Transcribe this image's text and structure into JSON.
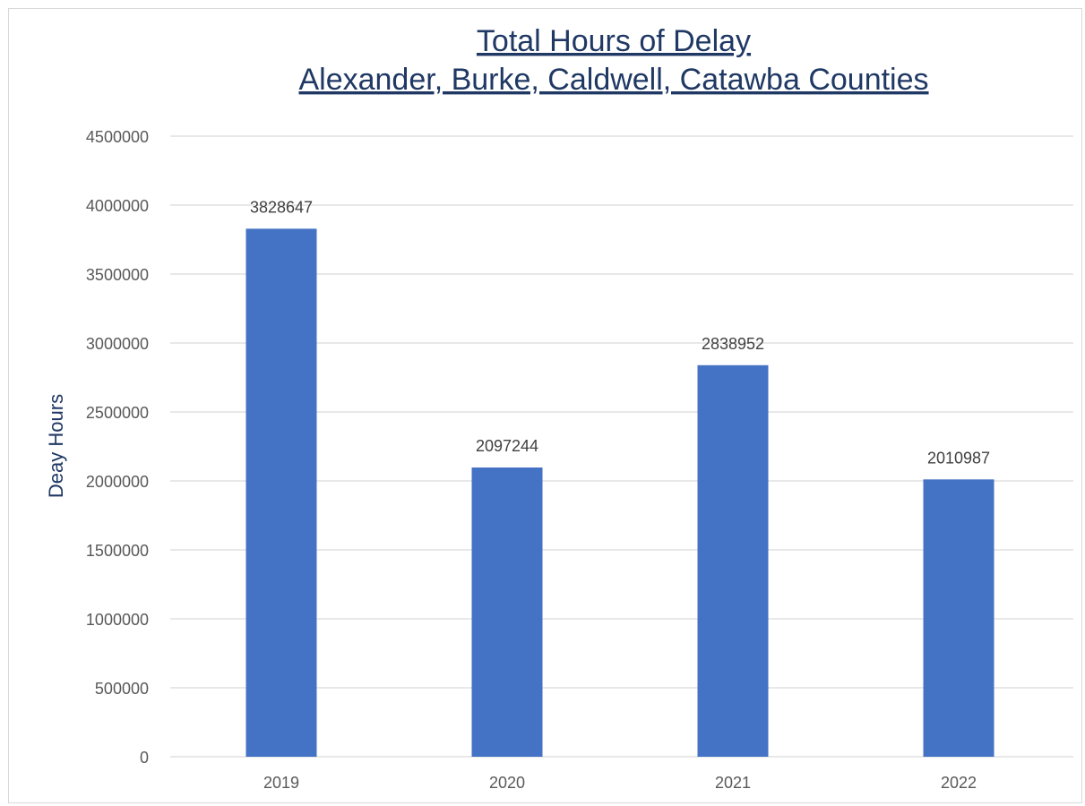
{
  "chart_data": {
    "type": "bar",
    "title": "Total Hours of Delay",
    "subtitle": "Alexander, Burke, Caldwell, Catawba Counties",
    "ylabel": "Deay Hours",
    "xlabel": "",
    "categories": [
      "2019",
      "2020",
      "2021",
      "2022"
    ],
    "values": [
      3828647,
      2097244,
      2838952,
      2010987
    ],
    "data_labels": [
      "3828647",
      "2097244",
      "2838952",
      "2010987"
    ],
    "ylim": [
      0,
      4500000
    ],
    "yticks": [
      0,
      500000,
      1000000,
      1500000,
      2000000,
      2500000,
      3000000,
      3500000,
      4000000,
      4500000
    ],
    "ytick_labels": [
      "0",
      "500000",
      "1000000",
      "1500000",
      "2000000",
      "2500000",
      "3000000",
      "3500000",
      "4000000",
      "4500000"
    ],
    "grid": true,
    "legend": "none",
    "colors": {
      "bar": "#4472C4",
      "title": "#1F3864",
      "axis_text": "#595959",
      "data_label": "#404040",
      "gridline": "#D9D9D9"
    }
  }
}
